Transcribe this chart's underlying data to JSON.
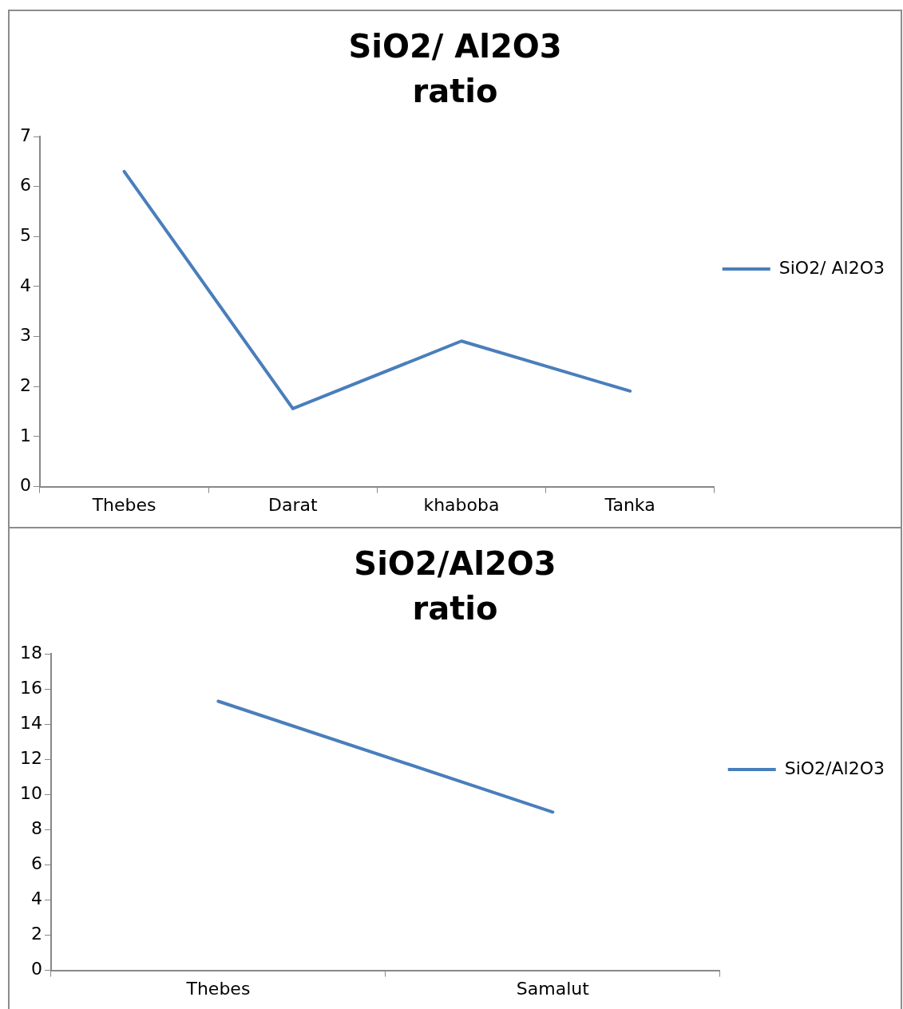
{
  "chart_data": [
    {
      "type": "line",
      "title": "SiO2/ Al2O3\nratio",
      "categories": [
        "Thebes",
        "Darat",
        "khaboba",
        "Tanka"
      ],
      "series": [
        {
          "name": "SiO2/ Al2O3",
          "color": "#4a7ebb",
          "values": [
            6.3,
            1.56,
            2.91,
            1.91
          ]
        }
      ],
      "ylim": [
        0,
        7
      ],
      "yticks": [
        0,
        1,
        2,
        3,
        4,
        5,
        6,
        7
      ],
      "grid": false,
      "legend": "right",
      "marker": "none"
    },
    {
      "type": "line",
      "title": "SiO2/Al2O3\nratio",
      "categories": [
        "Thebes",
        "Samalut"
      ],
      "series": [
        {
          "name": "SiO2/Al2O3",
          "color": "#4a7ebb",
          "values": [
            15.3,
            9.0
          ]
        }
      ],
      "ylim": [
        0,
        18
      ],
      "yticks": [
        0,
        2,
        4,
        6,
        8,
        10,
        12,
        14,
        16,
        18
      ],
      "grid": false,
      "legend": "right",
      "marker": "none"
    }
  ]
}
